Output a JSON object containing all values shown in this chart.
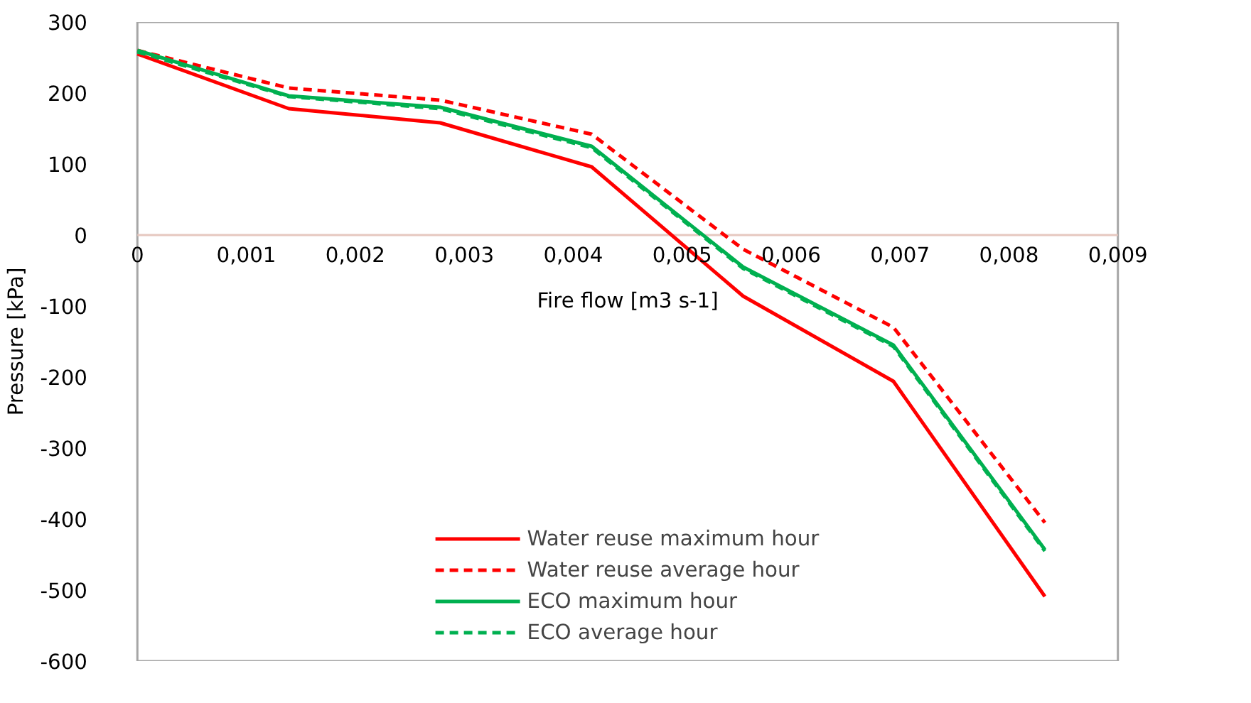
{
  "chart_data": {
    "type": "line",
    "xlabel": "Fire flow [m3 s-1]",
    "ylabel": "Pressure [kPa]",
    "x": [
      0,
      0.00139,
      0.00278,
      0.00417,
      0.00556,
      0.00694,
      0.00833
    ],
    "series": [
      {
        "name": "Water reuse maximum hour",
        "color": "#ff0000",
        "line_style": "solid",
        "values": [
          255,
          178,
          158,
          96,
          -86,
          -206,
          -509
        ]
      },
      {
        "name": "Water reuse average hour",
        "color": "#ff0000",
        "line_style": "dashed",
        "values": [
          260,
          207,
          190,
          142,
          -20,
          -130,
          -405
        ]
      },
      {
        "name": "ECO maximum hour",
        "color": "#00b050",
        "line_style": "solid",
        "values": [
          260,
          196,
          180,
          125,
          -45,
          -155,
          -443
        ]
      },
      {
        "name": "ECO average hour",
        "color": "#00b050",
        "line_style": "dashed",
        "values": [
          258,
          195,
          178,
          123,
          -47,
          -157,
          -445
        ]
      }
    ],
    "xlim": [
      0,
      0.009
    ],
    "ylim": [
      -600,
      300
    ],
    "xticks": [
      0,
      {
        "value": 0.001,
        "label": "0,001"
      },
      {
        "value": 0.002,
        "label": "0,002"
      },
      {
        "value": 0.003,
        "label": "0,003"
      },
      {
        "value": 0.004,
        "label": "0,004"
      },
      {
        "value": 0.005,
        "label": "0,005"
      },
      {
        "value": 0.006,
        "label": "0,006"
      },
      {
        "value": 0.007,
        "label": "0,007"
      },
      {
        "value": 0.008,
        "label": "0,008"
      },
      {
        "value": 0.009,
        "label": "0,009"
      }
    ],
    "yticks": [
      -600,
      -500,
      -400,
      -300,
      -200,
      -100,
      0,
      100,
      200,
      300
    ],
    "grid": false,
    "legend": "bottom",
    "marker": "none"
  }
}
